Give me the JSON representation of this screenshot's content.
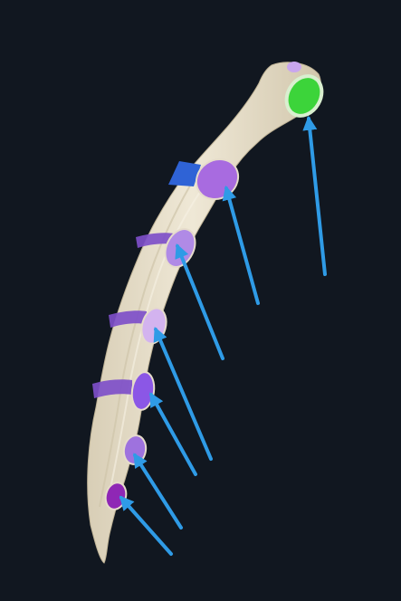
{
  "scene": {
    "subject": "sternum",
    "view": "anterolateral",
    "colors": {
      "background": "#111720",
      "bone": "#e8e0cc",
      "bone_shadow": "#cfc4aa",
      "arrow": "#2f9be6",
      "clavicular_notch": "#3cd43a",
      "costal_notch_light": "#b57ee6",
      "costal_notch_mid": "#9a5fe0",
      "costal_notch_deep": "#8a2fc4",
      "costal_band": "#7e4fc9",
      "costal_patch_blue": "#2f63d6"
    },
    "markers": [
      {
        "id": "clavicular-notch",
        "color": "#3cd43a"
      },
      {
        "id": "costal-notch-2",
        "color": "#a86be0"
      },
      {
        "id": "costal-notch-3",
        "color": "#b08ae6"
      },
      {
        "id": "costal-notch-4",
        "color": "#d3b3ef"
      },
      {
        "id": "costal-notch-5",
        "color": "#8b57e6"
      },
      {
        "id": "costal-notch-6",
        "color": "#9e72de"
      },
      {
        "id": "costal-notch-7",
        "color": "#8f27b5"
      }
    ]
  }
}
